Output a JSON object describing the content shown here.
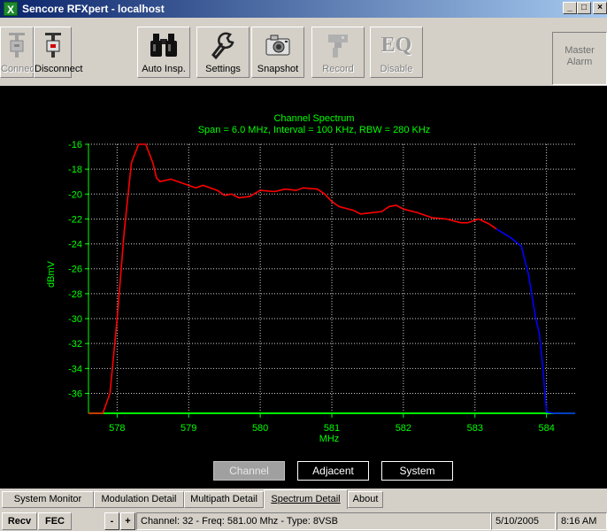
{
  "window": {
    "title": "Sencore RFXpert - localhost",
    "minimize": "_",
    "maximize": "□",
    "close": "×"
  },
  "toolbar": {
    "buttons": [
      {
        "label": "Connect",
        "icon": "connect-plug-icon",
        "enabled": false
      },
      {
        "label": "Disconnect",
        "icon": "disconnect-plug-icon",
        "enabled": true
      },
      {
        "label": "Auto Insp.",
        "icon": "binoculars-icon",
        "enabled": true
      },
      {
        "label": "Settings",
        "icon": "wrench-icon",
        "enabled": true
      },
      {
        "label": "Snapshot",
        "icon": "camera-icon",
        "enabled": true
      },
      {
        "label": "Record",
        "icon": "record-tool-icon",
        "enabled": false
      },
      {
        "label": "Disable",
        "icon": "eq-icon",
        "enabled": false
      }
    ],
    "eq_text": "EQ",
    "master_alarm": {
      "line1": "Master",
      "line2": "Alarm"
    }
  },
  "chart_data": {
    "type": "line",
    "title": "Channel Spectrum",
    "subtitle": "Span = 6.0 MHz, Interval = 100 KHz, RBW = 280 KHz",
    "xlabel": "MHz",
    "ylabel": "dBmV",
    "xlim": [
      577.6,
      584.4
    ],
    "ylim": [
      -37.6,
      -16
    ],
    "x_ticks": [
      578,
      579,
      580,
      581,
      582,
      583,
      584
    ],
    "y_ticks": [
      -16,
      -18,
      -20,
      -22,
      -24,
      -26,
      -28,
      -30,
      -32,
      -34,
      -36
    ],
    "grid": true,
    "series": [
      {
        "color": "#ff0000",
        "points": [
          [
            577.6,
            -37.6
          ],
          [
            577.8,
            -37.6
          ],
          [
            577.9,
            -36
          ],
          [
            578.0,
            -30
          ],
          [
            578.1,
            -23
          ],
          [
            578.2,
            -17.5
          ],
          [
            578.3,
            -16
          ],
          [
            578.4,
            -16
          ],
          [
            578.5,
            -17.5
          ],
          [
            578.55,
            -18.7
          ],
          [
            578.6,
            -19
          ],
          [
            578.75,
            -18.8
          ],
          [
            578.9,
            -19.1
          ],
          [
            579.1,
            -19.5
          ],
          [
            579.2,
            -19.3
          ],
          [
            579.4,
            -19.7
          ],
          [
            579.5,
            -20.1
          ],
          [
            579.6,
            -20.0
          ],
          [
            579.7,
            -20.3
          ],
          [
            579.85,
            -20.2
          ],
          [
            580.0,
            -19.7
          ],
          [
            580.2,
            -19.8
          ],
          [
            580.35,
            -19.6
          ],
          [
            580.5,
            -19.7
          ],
          [
            580.6,
            -19.5
          ],
          [
            580.8,
            -19.6
          ],
          [
            580.9,
            -20.0
          ],
          [
            581.0,
            -20.6
          ],
          [
            581.1,
            -21.0
          ],
          [
            581.3,
            -21.3
          ],
          [
            581.4,
            -21.6
          ],
          [
            581.55,
            -21.5
          ],
          [
            581.7,
            -21.4
          ],
          [
            581.8,
            -21.0
          ],
          [
            581.9,
            -20.9
          ],
          [
            582.0,
            -21.2
          ],
          [
            582.2,
            -21.5
          ],
          [
            582.4,
            -21.9
          ],
          [
            582.6,
            -22.0
          ],
          [
            582.8,
            -22.3
          ],
          [
            582.9,
            -22.3
          ],
          [
            583.05,
            -22.0
          ],
          [
            583.2,
            -22.4
          ],
          [
            583.3,
            -22.8
          ]
        ]
      },
      {
        "color": "#0000ff",
        "points": [
          [
            583.3,
            -22.8
          ],
          [
            583.5,
            -23.5
          ],
          [
            583.65,
            -24.2
          ],
          [
            583.75,
            -26.5
          ],
          [
            583.85,
            -30
          ],
          [
            583.9,
            -31.2
          ],
          [
            583.95,
            -34
          ],
          [
            584.0,
            -37.5
          ],
          [
            584.1,
            -37.6
          ],
          [
            584.4,
            -37.6
          ]
        ]
      }
    ]
  },
  "modes": {
    "channel": "Channel",
    "adjacent": "Adjacent",
    "system": "System"
  },
  "tabs": [
    "System Monitor",
    "Modulation Detail",
    "Multipath Detail",
    "Spectrum Detail",
    "About"
  ],
  "status": {
    "recv": "Recv",
    "fec": "FEC",
    "minus": "-",
    "plus": "+",
    "info": "Channel: 32 - Freq: 581.00 Mhz - Type: 8VSB",
    "date": "5/10/2005",
    "time": "8:16 AM"
  }
}
